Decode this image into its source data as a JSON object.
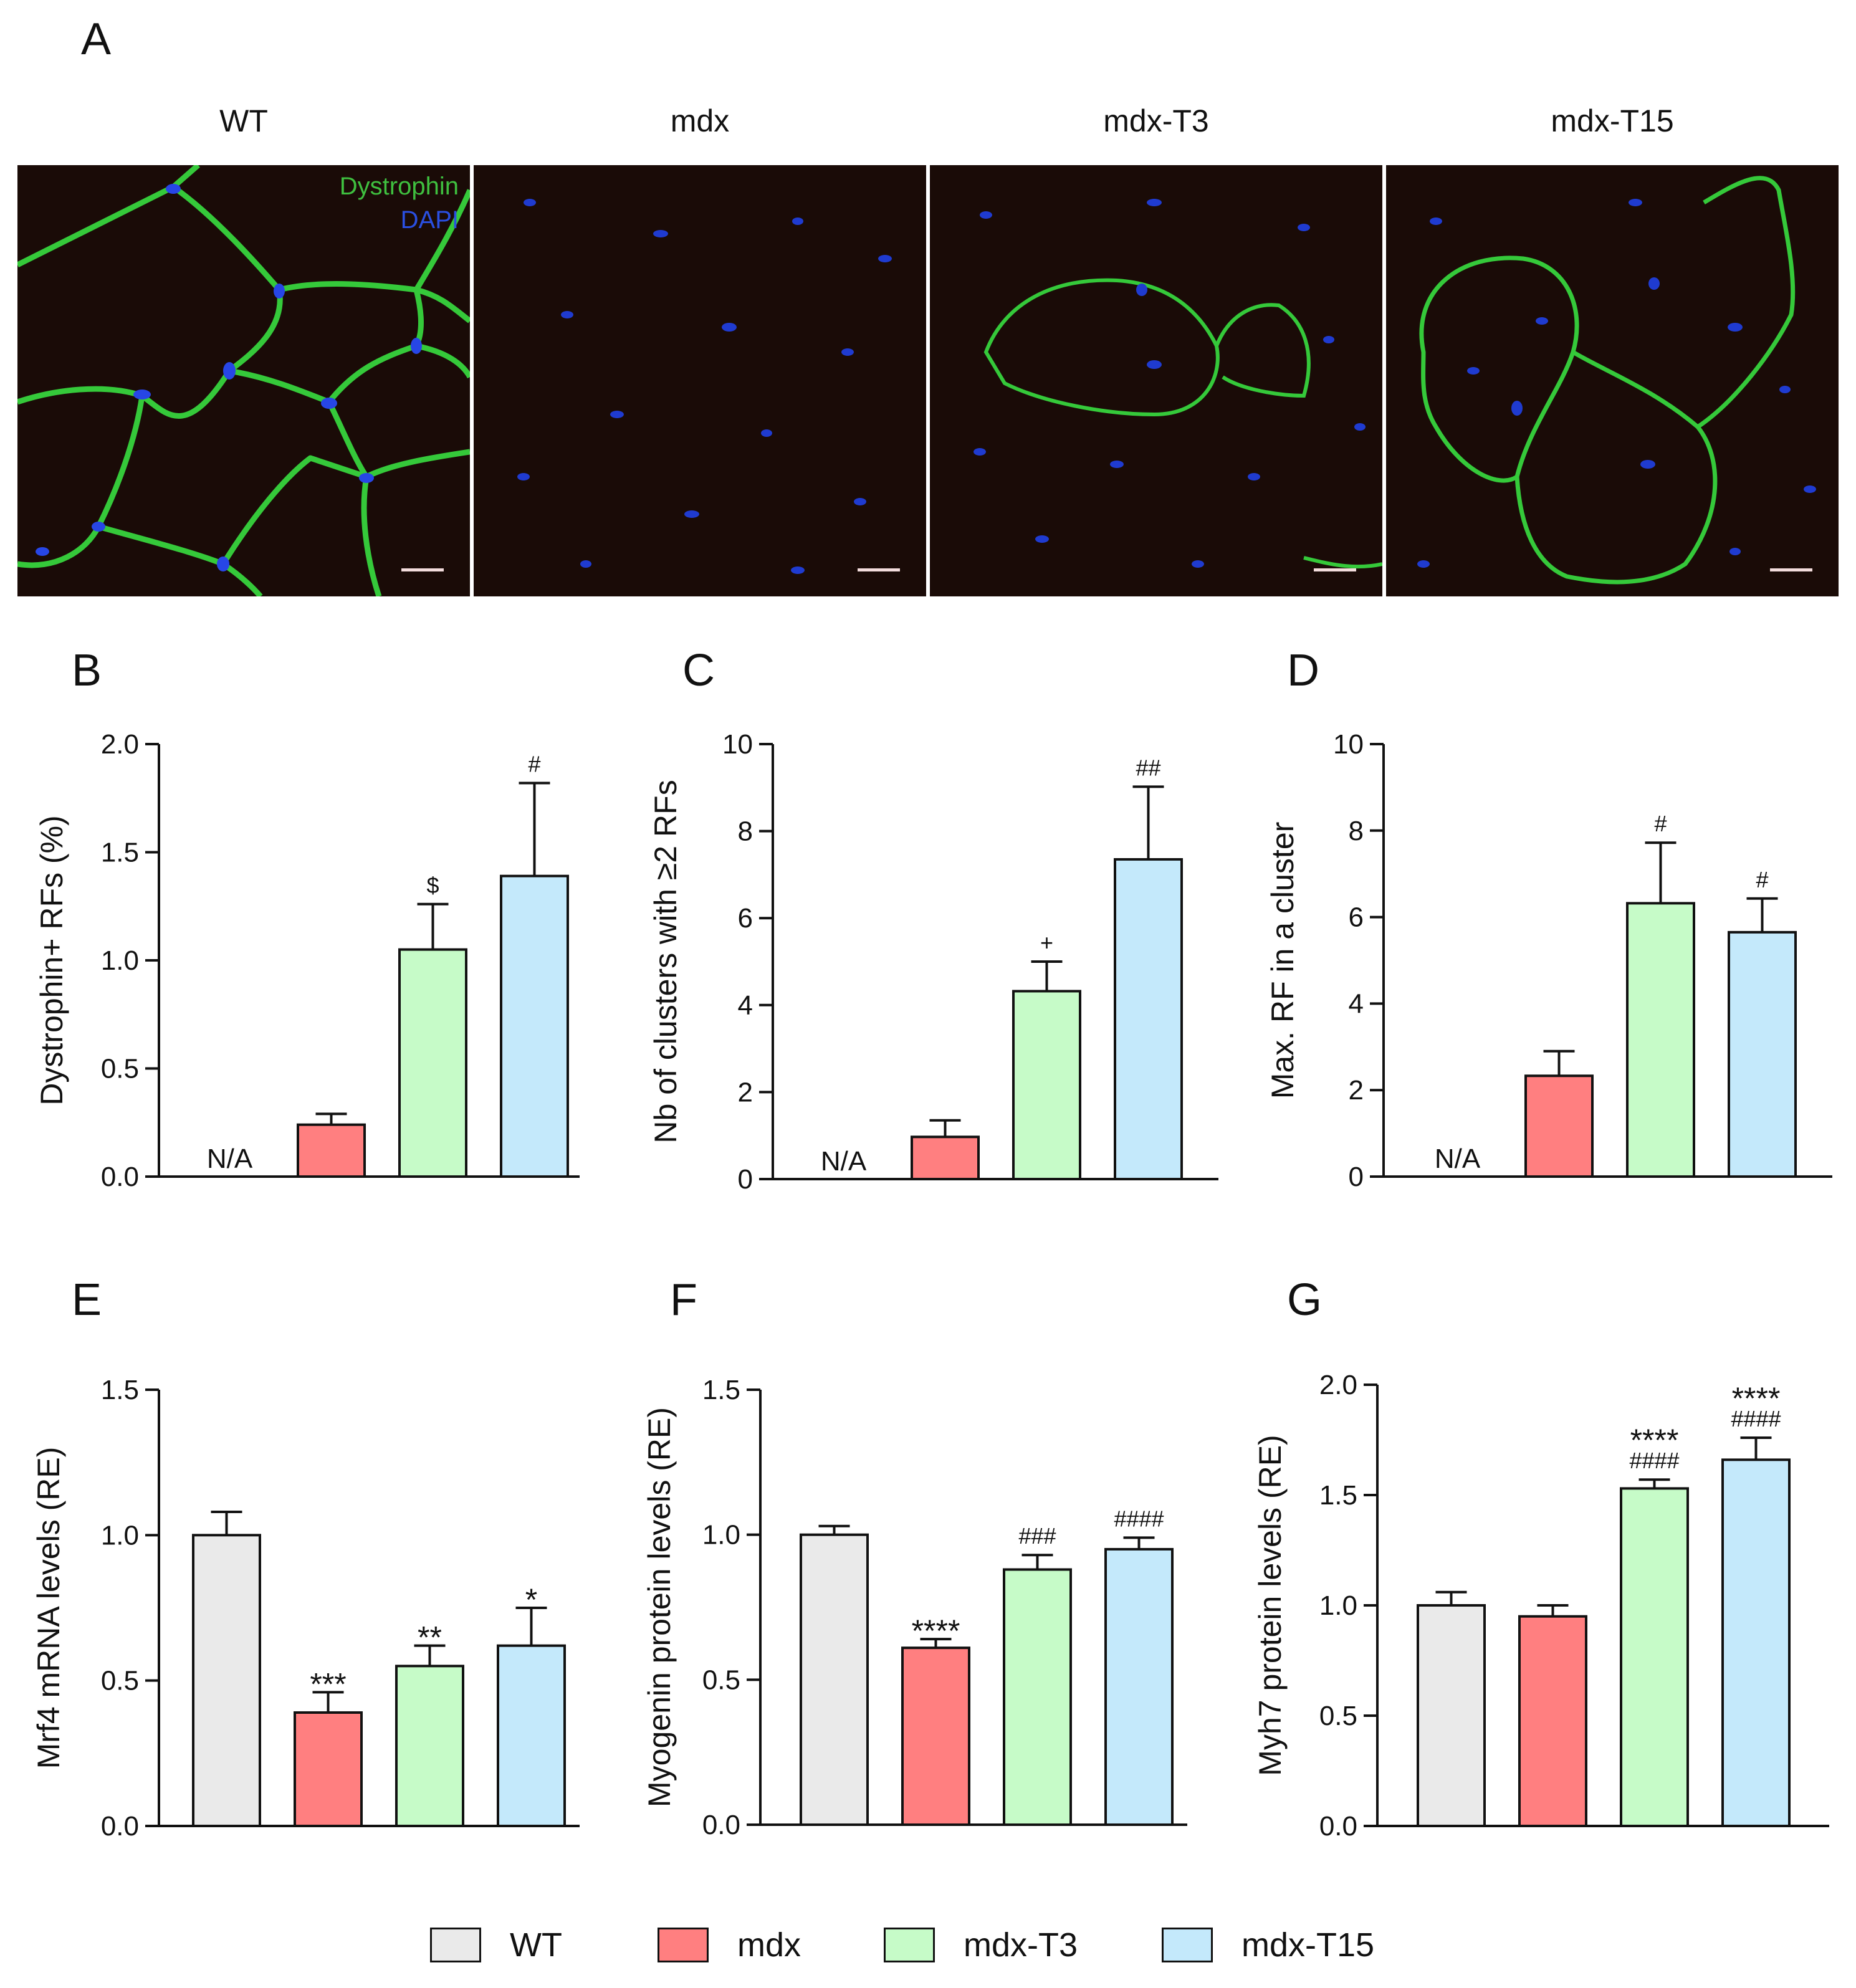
{
  "panel_a": {
    "letter": "A",
    "images": [
      {
        "title": "WT",
        "stain_labels": [
          {
            "text": "Dystrophin",
            "color": "#3fbf3f"
          },
          {
            "text": "DAPI",
            "color": "#2a4fe0"
          }
        ],
        "membrane_pattern": "full"
      },
      {
        "title": "mdx",
        "stain_labels": [],
        "membrane_pattern": "none"
      },
      {
        "title": "mdx-T3",
        "stain_labels": [],
        "membrane_pattern": "partial"
      },
      {
        "title": "mdx-T15",
        "stain_labels": [],
        "membrane_pattern": "partial"
      }
    ]
  },
  "colors": {
    "WT": "#eaeaea",
    "mdx": "#ff7f80",
    "mdx-T3": "#c6fbc8",
    "mdx-T15": "#c4e9fb",
    "axis": "#111111"
  },
  "legend": [
    {
      "label": "WT",
      "color": "#eaeaea"
    },
    {
      "label": "mdx",
      "color": "#ff7f80"
    },
    {
      "label": "mdx-T3",
      "color": "#c6fbc8"
    },
    {
      "label": "mdx-T15",
      "color": "#c4e9fb"
    }
  ],
  "chart_data": [
    {
      "letter": "B",
      "type": "bar",
      "categories": [
        "WT",
        "mdx",
        "mdx-T3",
        "mdx-T15"
      ],
      "values": [
        null,
        0.24,
        1.05,
        1.39
      ],
      "errors": [
        null,
        0.05,
        0.21,
        0.43
      ],
      "annotations": [
        "N/A",
        "",
        "$",
        "#"
      ],
      "ylabel": "Dystrophin+ RFs (%)",
      "ylim": [
        0,
        2.0
      ],
      "yticks": [
        "0.0",
        "0.5",
        "1.0",
        "1.5",
        "2.0"
      ]
    },
    {
      "letter": "C",
      "type": "bar",
      "categories": [
        "WT",
        "mdx",
        "mdx-T3",
        "mdx-T15"
      ],
      "values": [
        null,
        0.97,
        4.32,
        7.35
      ],
      "errors": [
        null,
        0.38,
        0.68,
        1.67
      ],
      "annotations": [
        "N/A",
        "",
        "+",
        "##"
      ],
      "ylabel": "Nb of clusters with ≥2 RFs",
      "ylim": [
        0,
        10
      ],
      "yticks": [
        "0",
        "2",
        "4",
        "6",
        "8",
        "10"
      ]
    },
    {
      "letter": "D",
      "type": "bar",
      "categories": [
        "WT",
        "mdx",
        "mdx-T3",
        "mdx-T15"
      ],
      "values": [
        null,
        2.33,
        6.32,
        5.65
      ],
      "errors": [
        null,
        0.57,
        1.4,
        0.78
      ],
      "annotations": [
        "N/A",
        "",
        "#",
        "#"
      ],
      "ylabel": "Max. RF in a cluster",
      "ylim": [
        0,
        10
      ],
      "yticks": [
        "0",
        "2",
        "4",
        "6",
        "8",
        "10"
      ]
    },
    {
      "letter": "E",
      "type": "bar",
      "categories": [
        "WT",
        "mdx",
        "mdx-T3",
        "mdx-T15"
      ],
      "values": [
        1.0,
        0.39,
        0.55,
        0.62
      ],
      "errors": [
        0.08,
        0.07,
        0.07,
        0.13
      ],
      "annotations": [
        "",
        "***",
        "**",
        "*"
      ],
      "ylabel": "Mrf4 mRNA levels (RE)",
      "ylim": [
        0,
        1.5
      ],
      "yticks": [
        "0.0",
        "0.5",
        "1.0",
        "1.5"
      ]
    },
    {
      "letter": "F",
      "type": "bar",
      "categories": [
        "WT",
        "mdx",
        "mdx-T3",
        "mdx-T15"
      ],
      "values": [
        1.0,
        0.61,
        0.88,
        0.95
      ],
      "errors": [
        0.03,
        0.03,
        0.05,
        0.04
      ],
      "annotations": [
        "",
        "****",
        "###",
        "####"
      ],
      "ylabel": "Myogenin protein levels (RE)",
      "ylim": [
        0,
        1.5
      ],
      "yticks": [
        "0.0",
        "0.5",
        "1.0",
        "1.5"
      ]
    },
    {
      "letter": "G",
      "type": "bar",
      "categories": [
        "WT",
        "mdx",
        "mdx-T3",
        "mdx-T15"
      ],
      "values": [
        1.0,
        0.95,
        1.53,
        1.66
      ],
      "errors": [
        0.06,
        0.05,
        0.04,
        0.1
      ],
      "annotations": [
        "",
        "",
        "****\n####",
        "****\n####"
      ],
      "ylabel": "Myh7 protein levels (RE)",
      "ylim": [
        0,
        2.0
      ],
      "yticks": [
        "0.0",
        "0.5",
        "1.0",
        "1.5",
        "2.0"
      ]
    }
  ]
}
